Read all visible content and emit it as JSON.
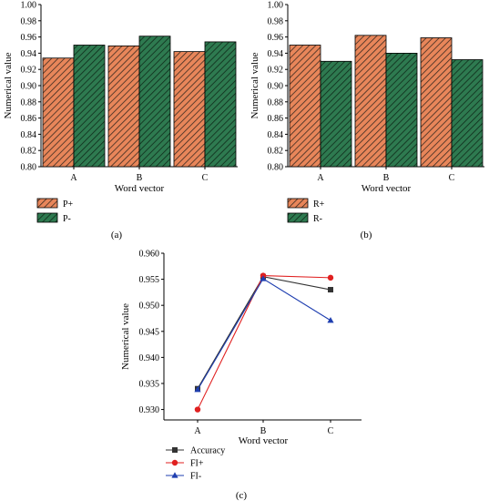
{
  "colors": {
    "orange": "#e8865a",
    "green": "#2e7a50",
    "black_line": "#333333",
    "red_line": "#e02020",
    "blue_line": "#1f3fb0"
  },
  "chart_data": [
    {
      "type": "bar",
      "panel_label": "(a)",
      "categories": [
        "A",
        "B",
        "C"
      ],
      "series": [
        {
          "name": "P+",
          "values": [
            0.934,
            0.949,
            0.942
          ],
          "color": "#e8865a",
          "pattern": "hatched"
        },
        {
          "name": "P-",
          "values": [
            0.95,
            0.961,
            0.954
          ],
          "color": "#2e7a50",
          "pattern": "hatched"
        }
      ],
      "xlabel": "Word vector",
      "ylabel": "Numerical value",
      "ylim": [
        0.8,
        1.0
      ],
      "yticks": [
        "0.80",
        "0.82",
        "0.84",
        "0.86",
        "0.88",
        "0.90",
        "0.92",
        "0.94",
        "0.96",
        "0.98",
        "1.00"
      ],
      "legend_placement": "below"
    },
    {
      "type": "bar",
      "panel_label": "(b)",
      "categories": [
        "A",
        "B",
        "C"
      ],
      "series": [
        {
          "name": "R+",
          "values": [
            0.95,
            0.962,
            0.959
          ],
          "color": "#e8865a",
          "pattern": "hatched"
        },
        {
          "name": "R-",
          "values": [
            0.93,
            0.94,
            0.932
          ],
          "color": "#2e7a50",
          "pattern": "hatched"
        }
      ],
      "xlabel": "Word vector",
      "ylabel": "Numerical value",
      "ylim": [
        0.8,
        1.0
      ],
      "yticks": [
        "0.80",
        "0.82",
        "0.84",
        "0.86",
        "0.88",
        "0.90",
        "0.92",
        "0.94",
        "0.96",
        "0.98",
        "1.00"
      ],
      "legend_placement": "below"
    },
    {
      "type": "line",
      "panel_label": "(c)",
      "categories": [
        "A",
        "B",
        "C"
      ],
      "series": [
        {
          "name": "Accuracy",
          "values": [
            0.934,
            0.9555,
            0.953
          ],
          "color": "#333333",
          "marker": "square"
        },
        {
          "name": "FI+",
          "values": [
            0.93,
            0.9557,
            0.9553
          ],
          "color": "#e02020",
          "marker": "circle"
        },
        {
          "name": "FI-",
          "values": [
            0.9338,
            0.9551,
            0.9471
          ],
          "color": "#1f3fb0",
          "marker": "triangle"
        }
      ],
      "xlabel": "Word vector",
      "ylabel": "Numerical value",
      "ylim": [
        0.928,
        0.96
      ],
      "yticks": [
        "0.930",
        "0.935",
        "0.940",
        "0.945",
        "0.950",
        "0.955",
        "0.960"
      ],
      "legend_placement": "below"
    }
  ]
}
